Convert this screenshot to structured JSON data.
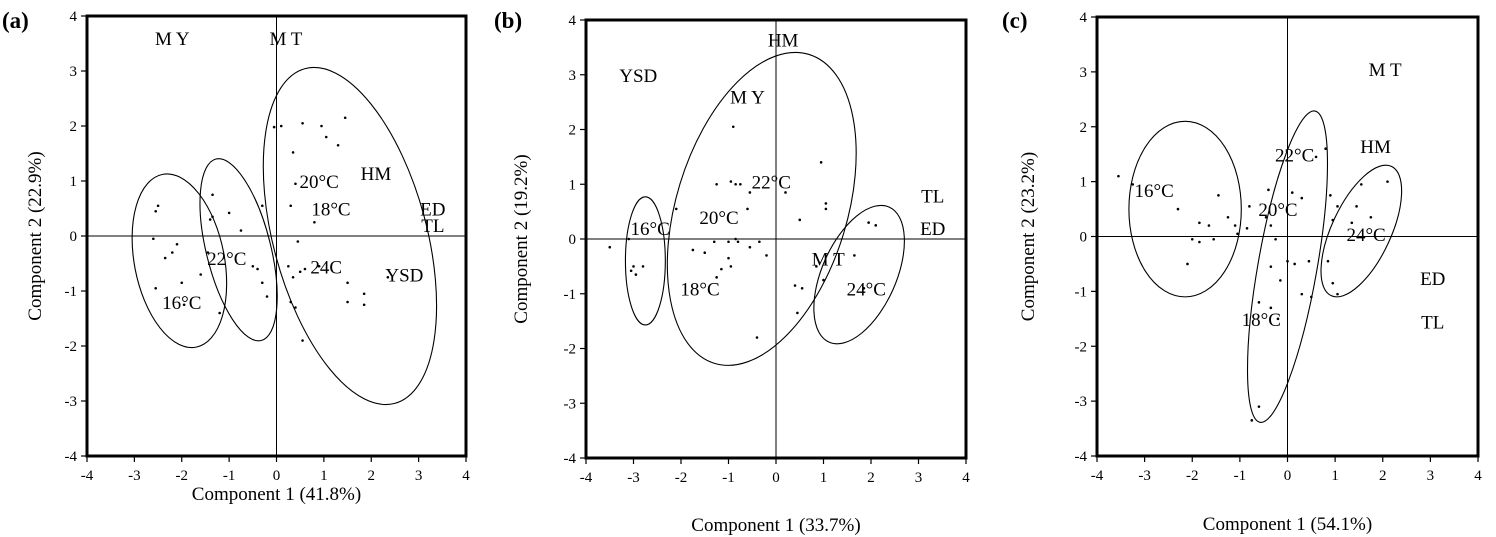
{
  "chart_data": [
    {
      "type": "scatter",
      "panel_label": "(a)",
      "xlabel": "Component 1 (41.8%)",
      "ylabel": "Component 2 (22.9%)",
      "xlim": [
        -4,
        4
      ],
      "ylim": [
        -4,
        4
      ],
      "xticks": [
        "-4",
        "-3",
        "-2",
        "-1",
        "0",
        "1",
        "2",
        "3",
        "4"
      ],
      "yticks": [
        "4",
        "3",
        "2",
        "1",
        "0",
        "-1",
        "-2",
        "-3",
        "-4"
      ],
      "grid": false,
      "zero_lines": true,
      "annotations": [
        {
          "text": "M Y",
          "x": -2.2,
          "y": 3.55
        },
        {
          "text": "M T",
          "x": 0.2,
          "y": 3.55
        },
        {
          "text": "HM",
          "x": 2.1,
          "y": 1.1
        },
        {
          "text": "ED",
          "x": 3.3,
          "y": 0.45
        },
        {
          "text": "TL",
          "x": 3.3,
          "y": 0.15
        },
        {
          "text": "YSD",
          "x": 2.7,
          "y": -0.75
        },
        {
          "text": "20°C",
          "x": 0.9,
          "y": 0.95
        },
        {
          "text": "18°C",
          "x": 1.15,
          "y": 0.45
        },
        {
          "text": "22°C",
          "x": -1.05,
          "y": -0.45
        },
        {
          "text": "24C",
          "x": 1.05,
          "y": -0.6
        },
        {
          "text": "16°C",
          "x": -2.0,
          "y": -1.25
        }
      ],
      "ellipses": [
        {
          "group": "16°C",
          "cx": -2.05,
          "cy": -0.45,
          "rx": 0.95,
          "ry": 1.6,
          "angle": -11
        },
        {
          "group": "22°C",
          "cx": -0.8,
          "cy": -0.25,
          "rx": 0.68,
          "ry": 1.7,
          "angle": -14
        },
        {
          "group": "20°C / 18°C / 24C",
          "cx": 1.55,
          "cy": 0.0,
          "rx": 1.62,
          "ry": 3.15,
          "angle": -15
        }
      ],
      "points": [
        [
          -2.5,
          0.55
        ],
        [
          -2.55,
          0.45
        ],
        [
          -2.6,
          -0.05
        ],
        [
          -2.35,
          -0.4
        ],
        [
          -2.2,
          -0.3
        ],
        [
          -2.1,
          -0.15
        ],
        [
          -2.55,
          -0.95
        ],
        [
          -2.0,
          -0.85
        ],
        [
          -1.95,
          -1.25
        ],
        [
          -1.6,
          -0.7
        ],
        [
          -1.45,
          -0.3
        ],
        [
          -1.35,
          0.75
        ],
        [
          -1.4,
          0.3
        ],
        [
          -1.35,
          0.35
        ],
        [
          -1.0,
          0.42
        ],
        [
          -0.75,
          0.1
        ],
        [
          -1.2,
          -1.4
        ],
        [
          -0.5,
          -0.55
        ],
        [
          -0.4,
          -0.6
        ],
        [
          -0.3,
          -0.85
        ],
        [
          -0.3,
          0.55
        ],
        [
          -0.2,
          -1.1
        ],
        [
          -0.05,
          1.98
        ],
        [
          0.1,
          2.0
        ],
        [
          0.35,
          1.52
        ],
        [
          0.4,
          0.95
        ],
        [
          0.55,
          2.05
        ],
        [
          0.95,
          2.0
        ],
        [
          1.05,
          1.8
        ],
        [
          1.45,
          2.15
        ],
        [
          1.3,
          1.65
        ],
        [
          0.3,
          0.55
        ],
        [
          0.8,
          0.25
        ],
        [
          0.45,
          -0.1
        ],
        [
          0.5,
          -0.65
        ],
        [
          0.35,
          -0.75
        ],
        [
          0.25,
          -0.55
        ],
        [
          0.6,
          -0.6
        ],
        [
          0.9,
          -0.55
        ],
        [
          0.3,
          -1.2
        ],
        [
          0.4,
          -1.3
        ],
        [
          0.55,
          -1.9
        ],
        [
          1.5,
          -0.85
        ],
        [
          1.5,
          -1.2
        ],
        [
          1.85,
          -1.05
        ],
        [
          1.85,
          -1.25
        ],
        [
          2.35,
          -0.75
        ]
      ]
    },
    {
      "type": "scatter",
      "panel_label": "(b)",
      "xlabel": "Component 1 (33.7%)",
      "ylabel": "Component 2 (19.2%)",
      "xlim": [
        -4,
        4
      ],
      "ylim": [
        -4,
        4
      ],
      "xticks": [
        "-4",
        "-3",
        "-2",
        "-1",
        "0",
        "1",
        "2",
        "3",
        "4"
      ],
      "yticks": [
        "4",
        "3",
        "2",
        "1",
        "0",
        "-1",
        "-2",
        "-3",
        "-4"
      ],
      "grid": false,
      "zero_lines": true,
      "annotations": [
        {
          "text": "HM",
          "x": 0.15,
          "y": 3.6
        },
        {
          "text": "YSD",
          "x": -2.9,
          "y": 2.95
        },
        {
          "text": "M Y",
          "x": -0.6,
          "y": 2.55
        },
        {
          "text": "TL",
          "x": 3.3,
          "y": 0.75
        },
        {
          "text": "ED",
          "x": 3.3,
          "y": 0.15
        },
        {
          "text": "22°C",
          "x": -0.1,
          "y": 1.0
        },
        {
          "text": "20°C",
          "x": -1.2,
          "y": 0.35
        },
        {
          "text": "16°C",
          "x": -2.65,
          "y": 0.15
        },
        {
          "text": "M T",
          "x": 1.1,
          "y": -0.4
        },
        {
          "text": "24°C",
          "x": 1.9,
          "y": -0.95
        },
        {
          "text": "18°C",
          "x": -1.6,
          "y": -0.95
        }
      ],
      "ellipses": [
        {
          "group": "16°C",
          "cx": -2.75,
          "cy": -0.4,
          "rx": 0.42,
          "ry": 1.17,
          "angle": 0
        },
        {
          "group": "20°C / 18°C / 22°C",
          "cx": -0.3,
          "cy": 0.55,
          "rx": 1.8,
          "ry": 2.95,
          "angle": 17
        },
        {
          "group": "24°C",
          "cx": 1.75,
          "cy": -0.65,
          "rx": 0.78,
          "ry": 1.35,
          "angle": 24
        }
      ],
      "points": [
        [
          -3.5,
          -0.15
        ],
        [
          -3.0,
          -0.5
        ],
        [
          -3.05,
          -0.58
        ],
        [
          -2.95,
          -0.65
        ],
        [
          -2.8,
          -0.5
        ],
        [
          -3.1,
          0.0
        ],
        [
          -2.1,
          0.55
        ],
        [
          -1.75,
          -0.2
        ],
        [
          -1.5,
          -0.25
        ],
        [
          -1.3,
          -0.05
        ],
        [
          -1.25,
          1.0
        ],
        [
          -0.9,
          2.05
        ],
        [
          -0.95,
          1.05
        ],
        [
          -0.85,
          1.0
        ],
        [
          -0.75,
          1.0
        ],
        [
          -0.55,
          0.85
        ],
        [
          -0.6,
          0.55
        ],
        [
          -1.0,
          -0.05
        ],
        [
          -0.85,
          0.0
        ],
        [
          -0.8,
          -0.05
        ],
        [
          -1.0,
          -0.35
        ],
        [
          -0.95,
          -0.5
        ],
        [
          -1.15,
          -0.55
        ],
        [
          -1.25,
          -0.7
        ],
        [
          -0.55,
          -0.15
        ],
        [
          -0.35,
          -0.05
        ],
        [
          -0.2,
          -0.3
        ],
        [
          0.2,
          0.85
        ],
        [
          0.5,
          0.35
        ],
        [
          0.95,
          1.4
        ],
        [
          1.05,
          0.65
        ],
        [
          1.05,
          0.55
        ],
        [
          0.85,
          -0.5
        ],
        [
          1.0,
          -0.75
        ],
        [
          0.55,
          -0.9
        ],
        [
          0.4,
          -0.85
        ],
        [
          0.45,
          -1.35
        ],
        [
          -0.4,
          -1.8
        ],
        [
          1.95,
          0.3
        ],
        [
          2.1,
          0.25
        ],
        [
          1.65,
          -0.3
        ],
        [
          1.85,
          -0.9
        ]
      ]
    },
    {
      "type": "scatter",
      "panel_label": "(c)",
      "xlabel": "Component 1 (54.1%)",
      "ylabel": "Component 2 (23.2%)",
      "xlim": [
        -4,
        4
      ],
      "ylim": [
        -4,
        4
      ],
      "xticks": [
        "-4",
        "-3",
        "-2",
        "-1",
        "0",
        "1",
        "2",
        "3",
        "4"
      ],
      "yticks": [
        "4",
        "3",
        "2",
        "1",
        "0",
        "-1",
        "-2",
        "-3",
        "-4"
      ],
      "grid": false,
      "zero_lines": true,
      "annotations": [
        {
          "text": "M T",
          "x": 2.05,
          "y": 3.0
        },
        {
          "text": "HM",
          "x": 1.85,
          "y": 1.6
        },
        {
          "text": "22°C",
          "x": 0.15,
          "y": 1.45
        },
        {
          "text": "16°C",
          "x": -2.8,
          "y": 0.8
        },
        {
          "text": "20°C",
          "x": -0.2,
          "y": 0.45
        },
        {
          "text": "24°C",
          "x": 1.65,
          "y": 0.0
        },
        {
          "text": "ED",
          "x": 3.05,
          "y": -0.8
        },
        {
          "text": "18°C",
          "x": -0.55,
          "y": -1.55
        },
        {
          "text": "TL",
          "x": 3.05,
          "y": -1.6
        }
      ],
      "ellipses": [
        {
          "group": "16°C",
          "cx": -2.15,
          "cy": 0.5,
          "rx": 1.18,
          "ry": 1.6,
          "angle": 0
        },
        {
          "group": "20°C / 22°C / 18°C",
          "cx": 0.0,
          "cy": -0.55,
          "rx": 0.62,
          "ry": 2.88,
          "angle": 10
        },
        {
          "group": "24°C",
          "cx": 1.55,
          "cy": 0.1,
          "rx": 0.62,
          "ry": 1.3,
          "angle": 25
        }
      ],
      "points": [
        [
          -3.55,
          1.1
        ],
        [
          -3.25,
          0.95
        ],
        [
          -2.3,
          0.5
        ],
        [
          -1.85,
          0.25
        ],
        [
          -1.65,
          0.2
        ],
        [
          -1.45,
          0.75
        ],
        [
          -1.25,
          0.35
        ],
        [
          -1.1,
          0.2
        ],
        [
          -1.05,
          0.05
        ],
        [
          -1.55,
          -0.05
        ],
        [
          -1.85,
          -0.1
        ],
        [
          -2.0,
          -0.05
        ],
        [
          -2.1,
          -0.5
        ],
        [
          -0.8,
          0.55
        ],
        [
          -0.85,
          0.15
        ],
        [
          -0.4,
          0.85
        ],
        [
          -0.45,
          0.35
        ],
        [
          -0.35,
          0.2
        ],
        [
          -0.25,
          -0.05
        ],
        [
          0.0,
          -0.45
        ],
        [
          0.15,
          -0.5
        ],
        [
          0.45,
          -0.45
        ],
        [
          -0.35,
          -0.55
        ],
        [
          -0.15,
          -0.8
        ],
        [
          0.3,
          -1.05
        ],
        [
          0.5,
          -1.1
        ],
        [
          -0.6,
          -1.2
        ],
        [
          -0.35,
          -1.3
        ],
        [
          -0.2,
          -1.5
        ],
        [
          -0.6,
          -3.1
        ],
        [
          -0.75,
          -3.35
        ],
        [
          0.3,
          0.7
        ],
        [
          0.1,
          0.8
        ],
        [
          0.6,
          1.45
        ],
        [
          0.8,
          1.6
        ],
        [
          0.9,
          0.75
        ],
        [
          1.05,
          0.55
        ],
        [
          0.95,
          0.3
        ],
        [
          1.45,
          0.55
        ],
        [
          1.35,
          0.25
        ],
        [
          1.55,
          0.95
        ],
        [
          2.1,
          1.0
        ],
        [
          1.75,
          0.35
        ],
        [
          0.85,
          -0.45
        ],
        [
          0.95,
          -0.85
        ],
        [
          1.05,
          -1.05
        ]
      ]
    }
  ]
}
